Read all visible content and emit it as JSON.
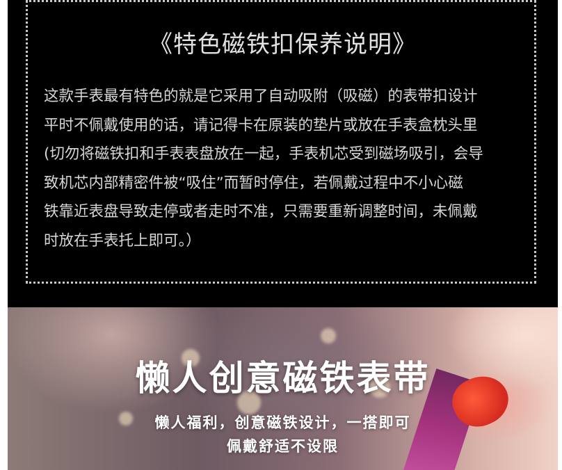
{
  "care_section": {
    "title": "《特色磁铁扣保养说明》",
    "body_lines": [
      "这款手表最有特色的就是它采用了自动吸附（吸磁）的表带扣设计",
      "平时不佩戴使用的话，请记得卡在原装的垫片或放在手表盒枕头里",
      "(切勿将磁铁扣和手表表盘放在一起，手表机芯受到磁场吸引，会导",
      "致机芯内部精密件被“吸住”而暂时停住，若佩戴过程中不小心磁",
      "铁靠近表盘导致走停或者走时不准，只需要重新调整时间，未佩戴",
      "时放在手表托上即可。）"
    ]
  },
  "banner": {
    "title": "懒人创意磁铁表带",
    "subtitle_line1": "懒人福利，创意磁铁设计，一搭即可",
    "subtitle_line2": "佩戴舒适不设限"
  }
}
